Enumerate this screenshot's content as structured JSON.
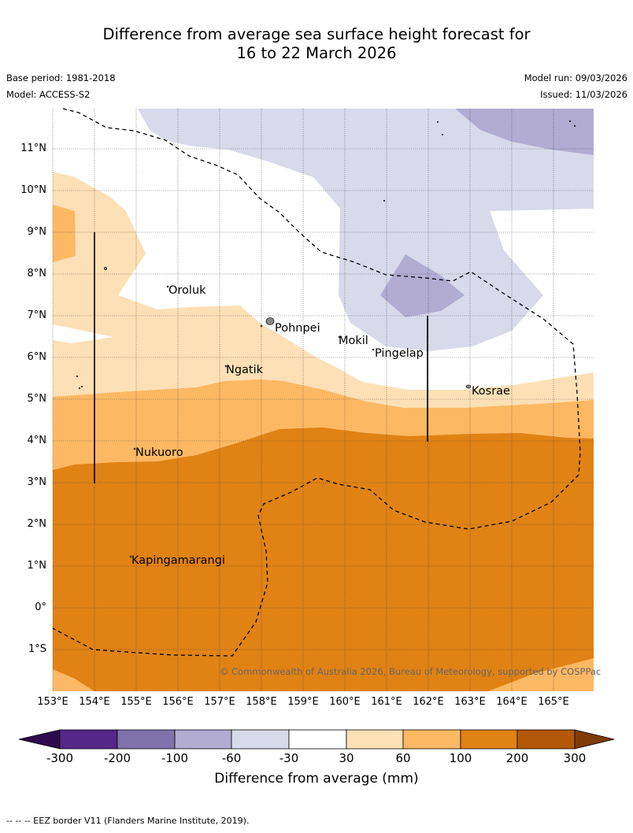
{
  "title_line1": "Difference from average sea surface height forecast for",
  "title_line2": "16 to 22 March 2026",
  "base_period": "Base period: 1981-2018",
  "model": "Model: ACCESS-S2",
  "model_run": "Model run: 09/03/2026",
  "issued": "Issued: 11/03/2026",
  "latitude_ticks": [
    "11°N",
    "10°N",
    "9°N",
    "8°N",
    "7°N",
    "6°N",
    "5°N",
    "4°N",
    "3°N",
    "2°N",
    "1°N",
    "0°",
    "1°S"
  ],
  "longitude_ticks": [
    "153°E",
    "154°E",
    "155°E",
    "156°E",
    "157°E",
    "158°E",
    "159°E",
    "160°E",
    "161°E",
    "162°E",
    "163°E",
    "164°E",
    "165°E"
  ],
  "places": {
    "oroluk": "Oroluk",
    "pohnpei": "Pohnpei",
    "mokil": "Mokil",
    "pingelap": "Pingelap",
    "ngatik": "Ngatik",
    "kosrae": "Kosrae",
    "nukuoro": "Nukuoro",
    "kapingamarangi": "Kapingamarangi"
  },
  "copyright": "© Commonwealth of Australia 2026, Bureau of Meteorology, supported by COSPPac",
  "colorbar": {
    "labels": [
      "-300",
      "-200",
      "-100",
      "-60",
      "-30",
      "30",
      "60",
      "100",
      "200",
      "300"
    ],
    "colors": {
      "under": "#2d0a4e",
      "m300_m200": "#542788",
      "m200_m100": "#8073ac",
      "m100_m60": "#b2abd2",
      "m60_m30": "#d8daeb",
      "m30_30": "#ffffff",
      "p30_60": "#fee0b6",
      "p60_100": "#fdb863",
      "p100_200": "#e08214",
      "p200_300": "#b35806",
      "over": "#7f3b08"
    },
    "title": "Difference from average (mm)"
  },
  "footnote": "--  --  -- EEZ border V11 (Flanders Marine Institute, 2019)."
}
